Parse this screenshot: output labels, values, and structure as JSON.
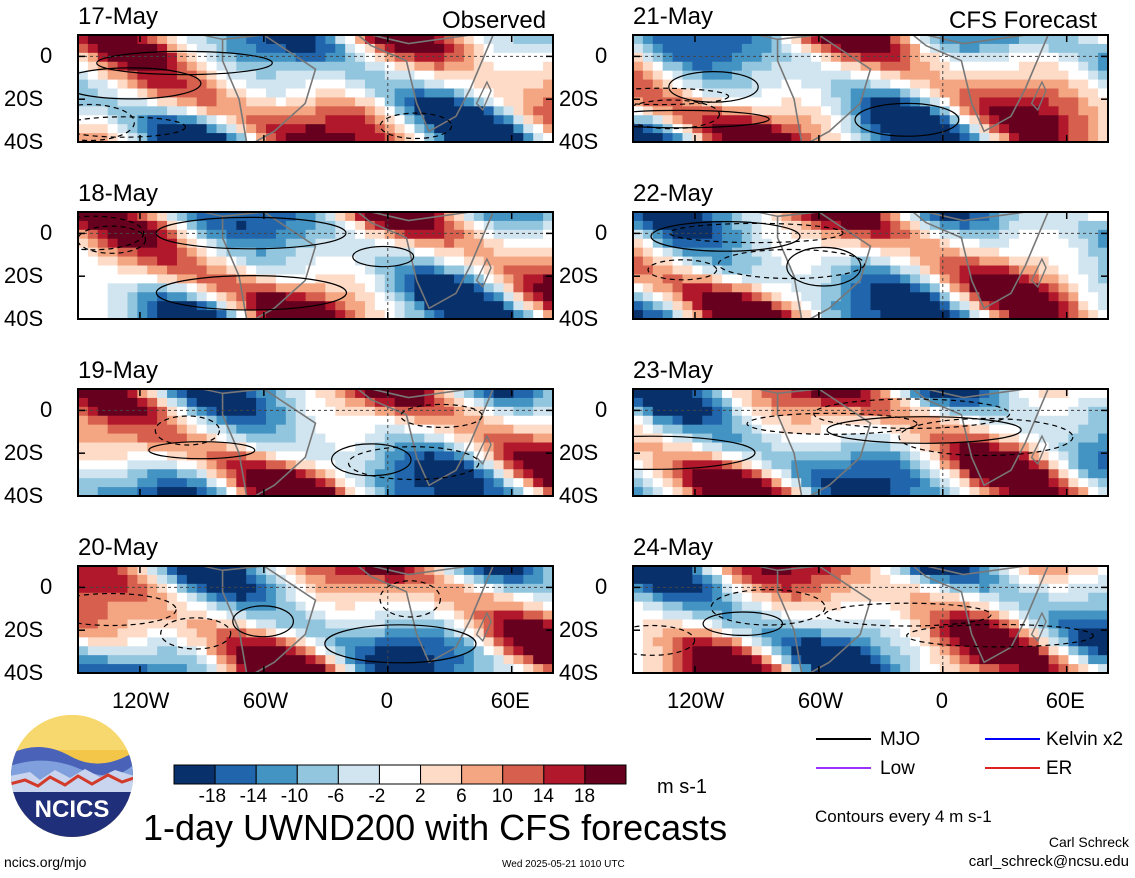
{
  "title": "1-day UWND200 with CFS forecasts",
  "observed_label": "Observed",
  "forecast_label": "CFS Forecast",
  "units": "m s-1",
  "contour_note": "Contours every 4 m s-1",
  "author": "Carl Schreck",
  "email": "carl_schreck@ncsu.edu",
  "footer_left": "ncics.org/mjo",
  "timestamp": "Wed 2025-05-21 1010 UTC",
  "logo_text": "NCICS",
  "legend": [
    {
      "label": "MJO",
      "color": "#000000"
    },
    {
      "label": "Kelvin x2",
      "color": "#0000ff"
    },
    {
      "label": "Low",
      "color": "#9933ff"
    },
    {
      "label": "ER",
      "color": "#dd2222"
    }
  ],
  "chart_data": {
    "type": "heatmap",
    "variable": "200-hPa zonal wind anomaly",
    "units": "m s-1",
    "observed_dates": [
      "17-May",
      "18-May",
      "19-May",
      "20-May"
    ],
    "forecast_dates": [
      "21-May",
      "22-May",
      "23-May",
      "24-May"
    ],
    "lat_ticks": [
      "0",
      "20S",
      "40S"
    ],
    "lat_values": [
      0,
      -20,
      -40
    ],
    "lat_range": [
      -40,
      10
    ],
    "lon_ticks": [
      "120W",
      "60W",
      "0",
      "60E"
    ],
    "lon_values": [
      -120,
      -60,
      0,
      60
    ],
    "lon_range": [
      -150,
      80
    ],
    "colorbar": {
      "tick_labels": [
        "-18",
        "-14",
        "-10",
        "-6",
        "-2",
        "2",
        "6",
        "10",
        "14",
        "18"
      ],
      "levels": [
        -18,
        -14,
        -10,
        -6,
        -2,
        2,
        6,
        10,
        14,
        18
      ],
      "colors": [
        "#08306b",
        "#2166ac",
        "#4393c3",
        "#92c5de",
        "#d1e5f0",
        "#ffffff",
        "#fddbc7",
        "#f4a582",
        "#d6604d",
        "#b2182b",
        "#67001f"
      ]
    }
  }
}
